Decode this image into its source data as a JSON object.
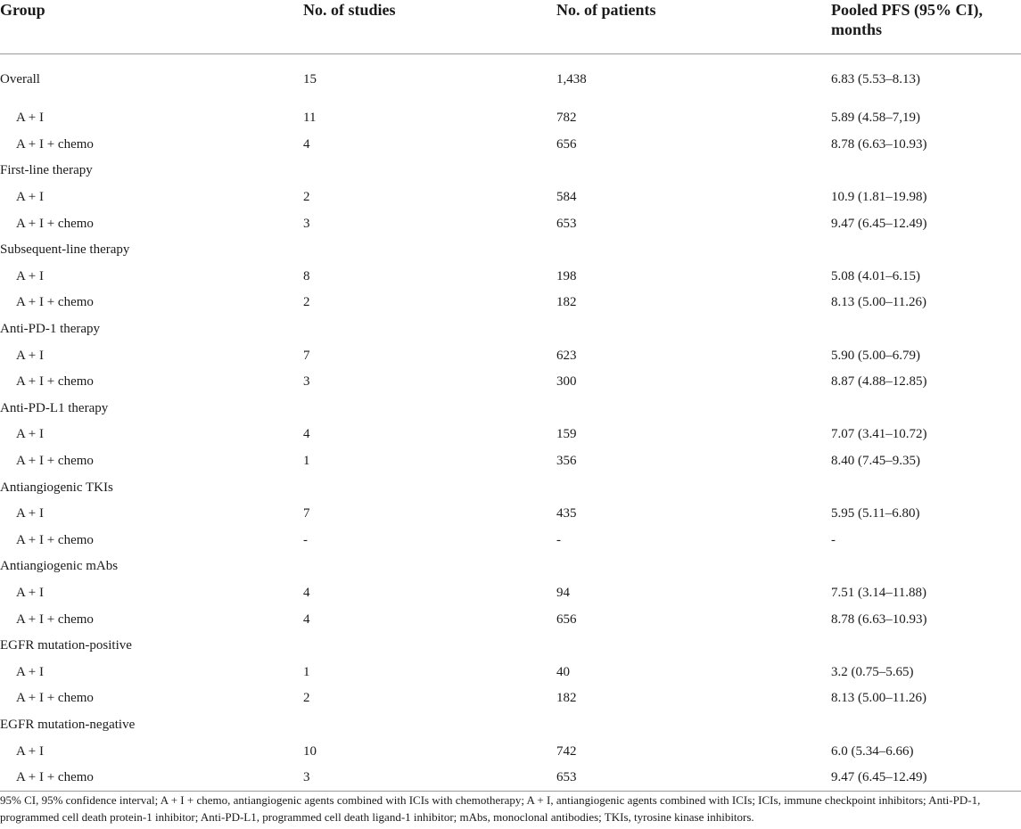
{
  "table": {
    "headers": {
      "group": "Group",
      "studies": "No. of studies",
      "patients": "No. of patients",
      "pfs": "Pooled PFS (95% CI), months"
    },
    "rows": [
      {
        "group": "Overall",
        "studies": "15",
        "patients": "1,438",
        "pfs": "6.83 (5.53–8.13)",
        "sub": false
      },
      {
        "group": "A + I",
        "studies": "11",
        "patients": "782",
        "pfs": "5.89 (4.58–7,19)",
        "sub": true
      },
      {
        "group": "A + I + chemo",
        "studies": "4",
        "patients": "656",
        "pfs": "8.78 (6.63–10.93)",
        "sub": true
      },
      {
        "group": "First-line therapy",
        "studies": "",
        "patients": "",
        "pfs": "",
        "sub": false
      },
      {
        "group": "A + I",
        "studies": "2",
        "patients": "584",
        "pfs": "10.9 (1.81–19.98)",
        "sub": true
      },
      {
        "group": "A + I + chemo",
        "studies": "3",
        "patients": "653",
        "pfs": "9.47 (6.45–12.49)",
        "sub": true
      },
      {
        "group": "Subsequent-line therapy",
        "studies": "",
        "patients": "",
        "pfs": "",
        "sub": false
      },
      {
        "group": "A + I",
        "studies": "8",
        "patients": "198",
        "pfs": "5.08 (4.01–6.15)",
        "sub": true
      },
      {
        "group": "A + I + chemo",
        "studies": "2",
        "patients": "182",
        "pfs": "8.13 (5.00–11.26)",
        "sub": true
      },
      {
        "group": "Anti-PD-1 therapy",
        "studies": "",
        "patients": "",
        "pfs": "",
        "sub": false
      },
      {
        "group": "A + I",
        "studies": "7",
        "patients": "623",
        "pfs": "5.90 (5.00–6.79)",
        "sub": true
      },
      {
        "group": "A + I + chemo",
        "studies": "3",
        "patients": "300",
        "pfs": "8.87 (4.88–12.85)",
        "sub": true
      },
      {
        "group": "Anti-PD-L1 therapy",
        "studies": "",
        "patients": "",
        "pfs": "",
        "sub": false
      },
      {
        "group": "A + I",
        "studies": "4",
        "patients": "159",
        "pfs": "7.07 (3.41–10.72)",
        "sub": true
      },
      {
        "group": "A + I + chemo",
        "studies": "1",
        "patients": "356",
        "pfs": "8.40 (7.45–9.35)",
        "sub": true
      },
      {
        "group": "Antiangiogenic TKIs",
        "studies": "",
        "patients": "",
        "pfs": "",
        "sub": false
      },
      {
        "group": "A + I",
        "studies": "7",
        "patients": "435",
        "pfs": "5.95 (5.11–6.80)",
        "sub": true
      },
      {
        "group": "A + I + chemo",
        "studies": "-",
        "patients": "-",
        "pfs": "-",
        "sub": true
      },
      {
        "group": "Antiangiogenic mAbs",
        "studies": "",
        "patients": "",
        "pfs": "",
        "sub": false
      },
      {
        "group": "A + I",
        "studies": "4",
        "patients": "94",
        "pfs": "7.51 (3.14–11.88)",
        "sub": true
      },
      {
        "group": "A + I + chemo",
        "studies": "4",
        "patients": "656",
        "pfs": "8.78 (6.63–10.93)",
        "sub": true
      },
      {
        "group": "EGFR mutation-positive",
        "studies": "",
        "patients": "",
        "pfs": "",
        "sub": false
      },
      {
        "group": "A + I",
        "studies": "1",
        "patients": "40",
        "pfs": "3.2 (0.75–5.65)",
        "sub": true
      },
      {
        "group": "A + I + chemo",
        "studies": "2",
        "patients": "182",
        "pfs": "8.13 (5.00–11.26)",
        "sub": true
      },
      {
        "group": "EGFR mutation-negative",
        "studies": "",
        "patients": "",
        "pfs": "",
        "sub": false
      },
      {
        "group": "A + I",
        "studies": "10",
        "patients": "742",
        "pfs": "6.0 (5.34–6.66)",
        "sub": true
      },
      {
        "group": "A + I + chemo",
        "studies": "3",
        "patients": "653",
        "pfs": "9.47 (6.45–12.49)",
        "sub": true
      }
    ]
  },
  "footnote": "95% CI, 95% confidence interval; A + I + chemo, antiangiogenic agents combined with ICIs with chemotherapy; A + I, antiangiogenic agents combined with ICIs; ICIs, immune checkpoint inhibitors; Anti-PD-1, programmed cell death protein-1 inhibitor; Anti-PD-L1, programmed cell death ligand-1 inhibitor; mAbs, monoclonal antibodies; TKIs, tyrosine kinase inhibitors."
}
